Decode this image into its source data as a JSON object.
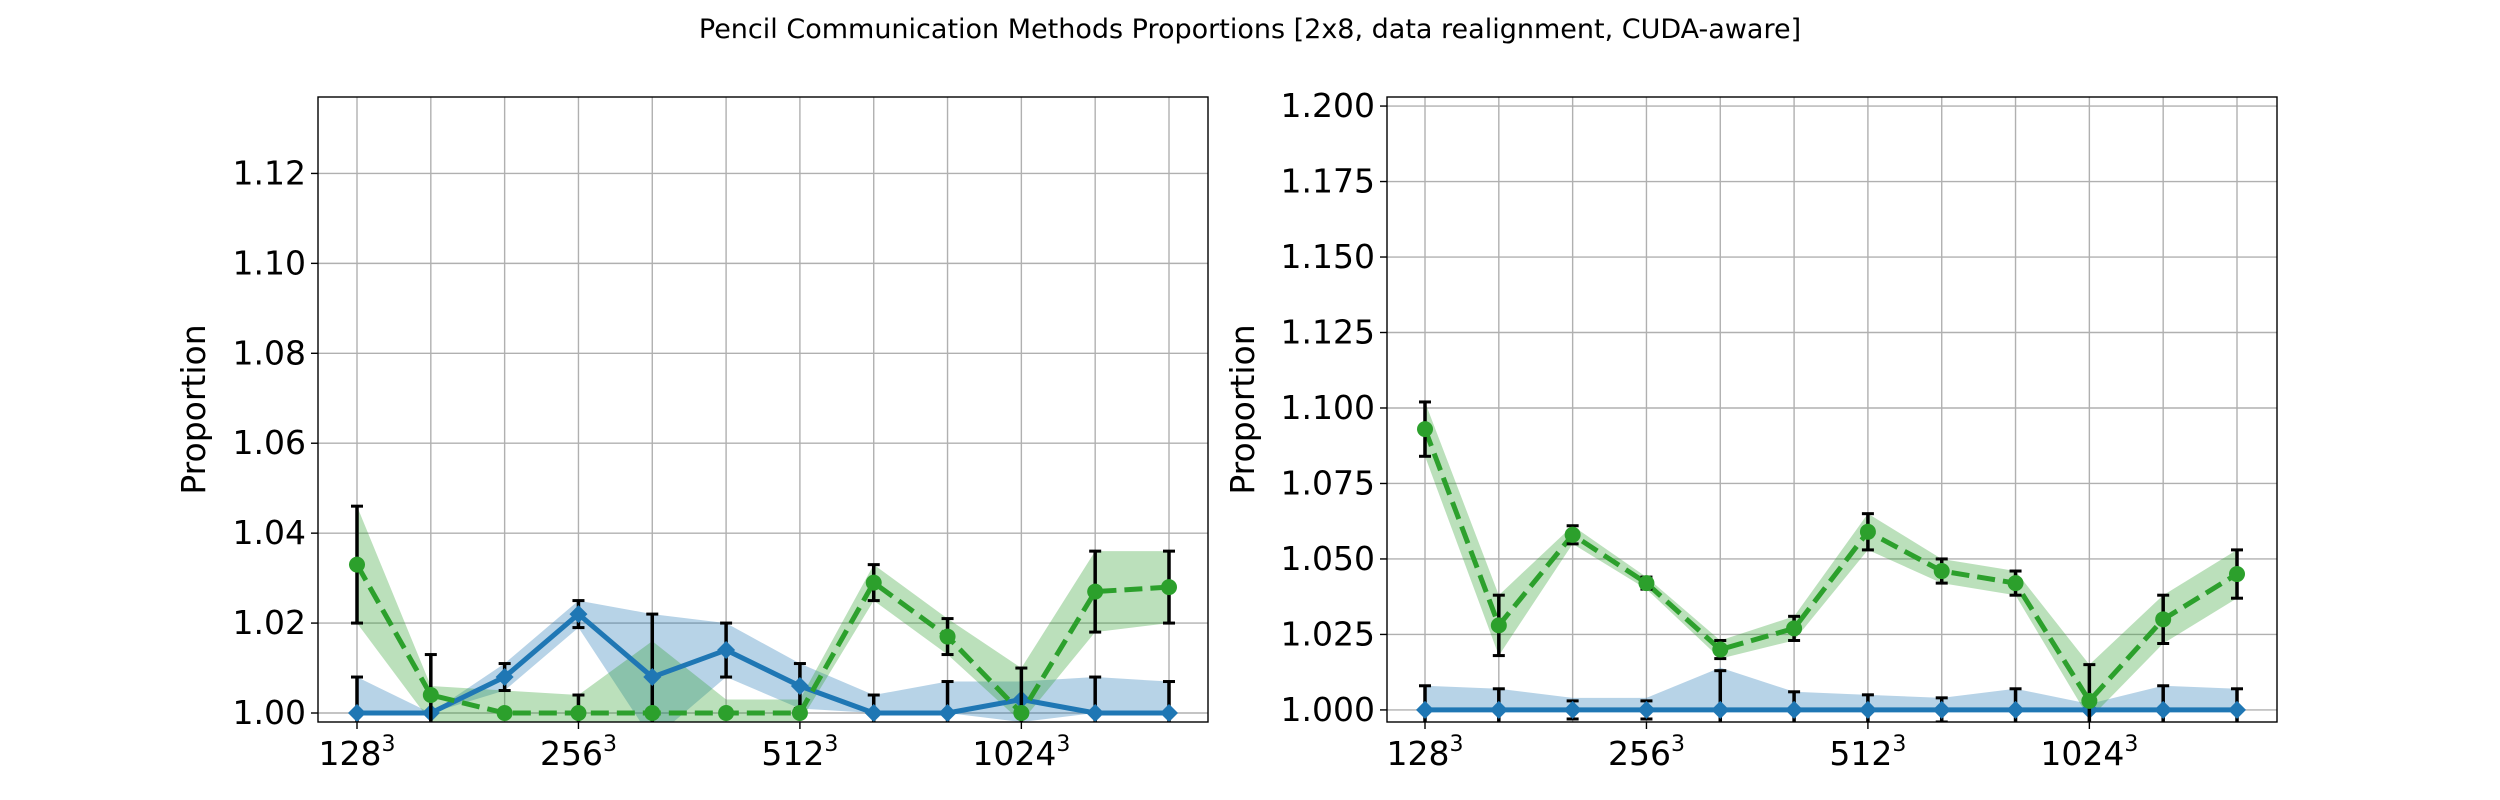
{
  "figure": {
    "title": "Pencil Communication Methods Proportions [2x8, data realignment, CUDA-aware]"
  },
  "colors": {
    "blue": "#1f77b4",
    "green": "#2ca02c",
    "grid": "#b0b0b0",
    "errorbar": "#000000"
  },
  "chart_data": [
    {
      "type": "line",
      "ylabel": "Proportion",
      "xlabel": "",
      "grid": true,
      "ylim": [
        0.998,
        1.137
      ],
      "yticks": [
        1.0,
        1.02,
        1.04,
        1.06,
        1.08,
        1.1,
        1.12
      ],
      "ytick_labels": [
        "1.00",
        "1.02",
        "1.04",
        "1.06",
        "1.08",
        "1.10",
        "1.12"
      ],
      "x": [
        0,
        1,
        2,
        3,
        4,
        5,
        6,
        7,
        8,
        9,
        10,
        11
      ],
      "xticks": [
        0,
        3,
        6,
        9
      ],
      "xtick_labels": [
        {
          "base": "128",
          "exp": "3"
        },
        {
          "base": "256",
          "exp": "3"
        },
        {
          "base": "512",
          "exp": "3"
        },
        {
          "base": "1024",
          "exp": "3"
        }
      ],
      "series": [
        {
          "color": "blue",
          "style": "solid",
          "marker": "diamond",
          "values": [
            1.0,
            1.0,
            1.008,
            1.022,
            1.008,
            1.014,
            1.006,
            1.0,
            1.0,
            1.003,
            1.0,
            1.0
          ],
          "err": [
            0.008,
            0.0,
            0.003,
            0.003,
            0.014,
            0.006,
            0.005,
            0.004,
            0.007,
            0.0,
            0.008,
            0.007
          ],
          "band": [
            [
              1.0,
              1.008
            ],
            [
              1.0,
              1.0
            ],
            [
              1.005,
              1.011
            ],
            [
              1.019,
              1.025
            ],
            [
              0.994,
              1.022
            ],
            [
              1.008,
              1.02
            ],
            [
              1.001,
              1.011
            ],
            [
              1.0,
              1.004
            ],
            [
              1.0,
              1.007
            ],
            [
              0.998,
              1.007
            ],
            [
              1.0,
              1.008
            ],
            [
              1.0,
              1.007
            ]
          ]
        },
        {
          "color": "green",
          "style": "dashed",
          "marker": "circle",
          "values": [
            1.033,
            1.004,
            1.0,
            1.0,
            1.0,
            1.0,
            1.0,
            1.029,
            1.017,
            1.0,
            1.027,
            1.028
          ],
          "err": [
            0.013,
            0.009,
            0.0,
            0.004,
            0.0,
            0.0,
            0.0,
            0.004,
            0.004,
            0.01,
            0.009,
            0.008
          ],
          "band": [
            [
              1.02,
              1.046
            ],
            [
              0.998,
              1.006
            ],
            [
              0.998,
              1.005
            ],
            [
              0.998,
              1.004
            ],
            [
              0.998,
              1.016
            ],
            [
              0.998,
              1.003
            ],
            [
              0.998,
              1.003
            ],
            [
              1.025,
              1.033
            ],
            [
              1.013,
              1.021
            ],
            [
              0.998,
              1.01
            ],
            [
              1.018,
              1.036
            ],
            [
              1.02,
              1.036
            ]
          ]
        }
      ]
    },
    {
      "type": "line",
      "ylabel": "Proportion",
      "xlabel": "",
      "grid": true,
      "ylim": [
        0.996,
        1.203
      ],
      "yticks": [
        1.0,
        1.025,
        1.05,
        1.075,
        1.1,
        1.125,
        1.15,
        1.175,
        1.2
      ],
      "ytick_labels": [
        "1.000",
        "1.025",
        "1.050",
        "1.075",
        "1.100",
        "1.125",
        "1.150",
        "1.175",
        "1.200"
      ],
      "x": [
        0,
        1,
        2,
        3,
        4,
        5,
        6,
        7,
        8,
        9,
        10,
        11
      ],
      "xticks": [
        0,
        3,
        6,
        9
      ],
      "xtick_labels": [
        {
          "base": "128",
          "exp": "3"
        },
        {
          "base": "256",
          "exp": "3"
        },
        {
          "base": "512",
          "exp": "3"
        },
        {
          "base": "1024",
          "exp": "3"
        }
      ],
      "series": [
        {
          "color": "blue",
          "style": "solid",
          "marker": "diamond",
          "values": [
            1.0,
            1.0,
            1.0,
            1.0,
            1.0,
            1.0,
            1.0,
            1.0,
            1.0,
            1.0,
            1.0,
            1.0
          ],
          "err": [
            0.008,
            0.007,
            0.003,
            0.003,
            0.013,
            0.006,
            0.005,
            0.004,
            0.007,
            0.0,
            0.008,
            0.007
          ],
          "band": [
            [
              1.0,
              1.008
            ],
            [
              1.0,
              1.007
            ],
            [
              1.0,
              1.004
            ],
            [
              1.0,
              1.004
            ],
            [
              1.0,
              1.014
            ],
            [
              1.0,
              1.006
            ],
            [
              1.0,
              1.005
            ],
            [
              1.0,
              1.004
            ],
            [
              1.0,
              1.007
            ],
            [
              1.0,
              1.002
            ],
            [
              1.0,
              1.008
            ],
            [
              1.0,
              1.007
            ]
          ]
        },
        {
          "color": "green",
          "style": "dashed",
          "marker": "circle",
          "values": [
            1.093,
            1.028,
            1.058,
            1.042,
            1.02,
            1.027,
            1.059,
            1.046,
            1.042,
            1.003,
            1.03,
            1.045
          ],
          "err": [
            0.009,
            0.01,
            0.003,
            0.002,
            0.003,
            0.004,
            0.006,
            0.004,
            0.004,
            0.012,
            0.008,
            0.008
          ],
          "band": [
            [
              1.084,
              1.102
            ],
            [
              1.018,
              1.038
            ],
            [
              1.055,
              1.061
            ],
            [
              1.04,
              1.044
            ],
            [
              1.017,
              1.023
            ],
            [
              1.023,
              1.031
            ],
            [
              1.053,
              1.065
            ],
            [
              1.042,
              1.05
            ],
            [
              1.038,
              1.046
            ],
            [
              0.997,
              1.015
            ],
            [
              1.022,
              1.038
            ],
            [
              1.037,
              1.053
            ]
          ]
        }
      ]
    }
  ]
}
